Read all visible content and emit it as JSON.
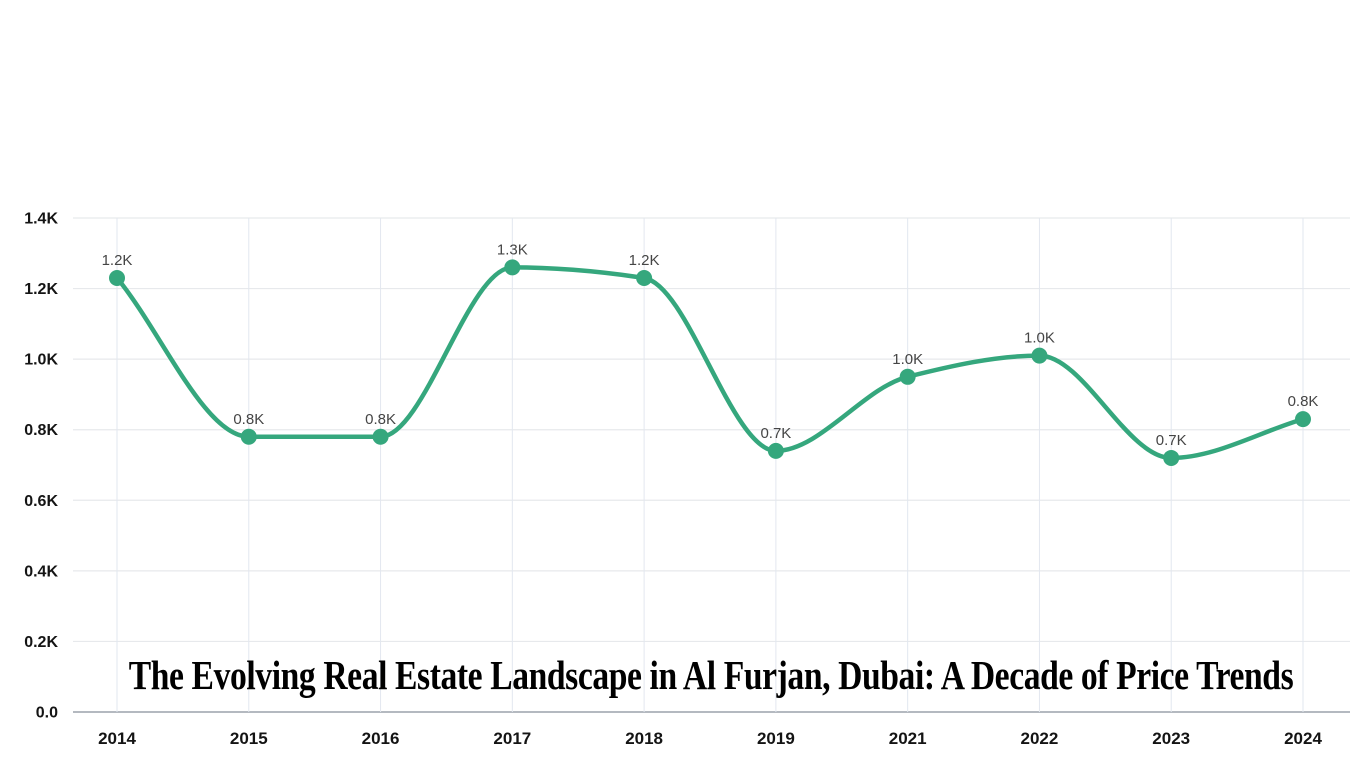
{
  "chart_data": {
    "type": "line",
    "title": "The Evolving Real Estate Landscape in Al Furjan, Dubai: A Decade of Price Trends",
    "categories": [
      "2014",
      "2015",
      "2016",
      "2017",
      "2018",
      "2019",
      "2021",
      "2022",
      "2023",
      "2024"
    ],
    "values": [
      1.23,
      0.78,
      0.78,
      1.26,
      1.23,
      0.74,
      0.95,
      1.01,
      0.72,
      0.83
    ],
    "point_labels": [
      "1.2K",
      "0.8K",
      "0.8K",
      "1.3K",
      "1.2K",
      "0.7K",
      "1.0K",
      "1.0K",
      "0.7K",
      "0.8K"
    ],
    "y_tick_values": [
      0,
      0.2,
      0.4,
      0.6,
      0.8,
      1.0,
      1.2,
      1.4
    ],
    "y_tick_labels": [
      "0.0",
      "0.2K",
      "0.4K",
      "0.6K",
      "0.8K",
      "1.0K",
      "1.2K",
      "1.4K"
    ],
    "ylim": [
      0,
      1.4
    ],
    "grid": true,
    "legend": "none",
    "curve": "smooth",
    "colors": {
      "line": "#35a77d",
      "marker": "#35a77d",
      "grid_horizontal": "#e7e9ec",
      "grid_vertical": "#e2e7ef",
      "axis_line": "#b4b9c0",
      "tick_label": "#141414",
      "point_label": "#454545",
      "title": "#000000",
      "background": "#ffffff"
    }
  }
}
